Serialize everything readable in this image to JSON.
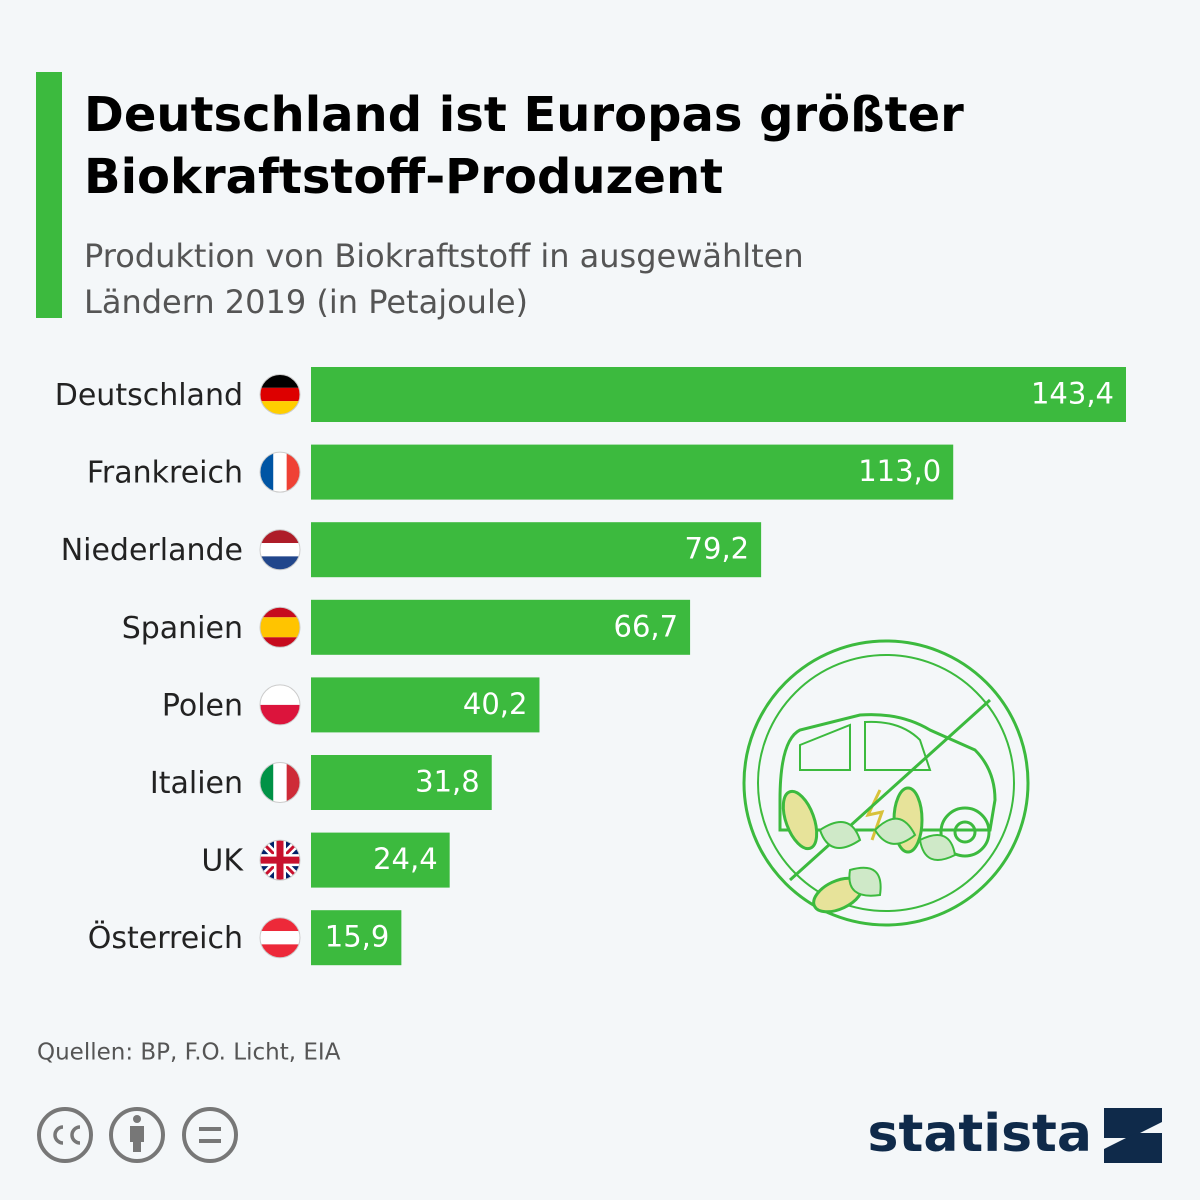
{
  "chart_data": {
    "type": "bar",
    "orientation": "horizontal",
    "title": [
      "Deutschland ist Europas größter",
      "Biokraftstoff-Produzent"
    ],
    "subtitle": [
      "Produktion von Biokraftstoff in ausgewählten",
      "Ländern 2019 (in Petajoule)"
    ],
    "categories": [
      "Deutschland",
      "Frankreich",
      "Niederlande",
      "Spanien",
      "Polen",
      "Italien",
      "UK",
      "Österreich"
    ],
    "values": [
      143.4,
      113.0,
      79.2,
      66.7,
      40.2,
      31.8,
      24.4,
      15.9
    ],
    "value_labels": [
      "143,4",
      "113,0",
      "79,2",
      "66,7",
      "40,2",
      "31,8",
      "24,4",
      "15,9"
    ],
    "color": "#3cba3e",
    "source": "Quellen: BP, F.O. Licht, EIA",
    "brand": "statista"
  }
}
